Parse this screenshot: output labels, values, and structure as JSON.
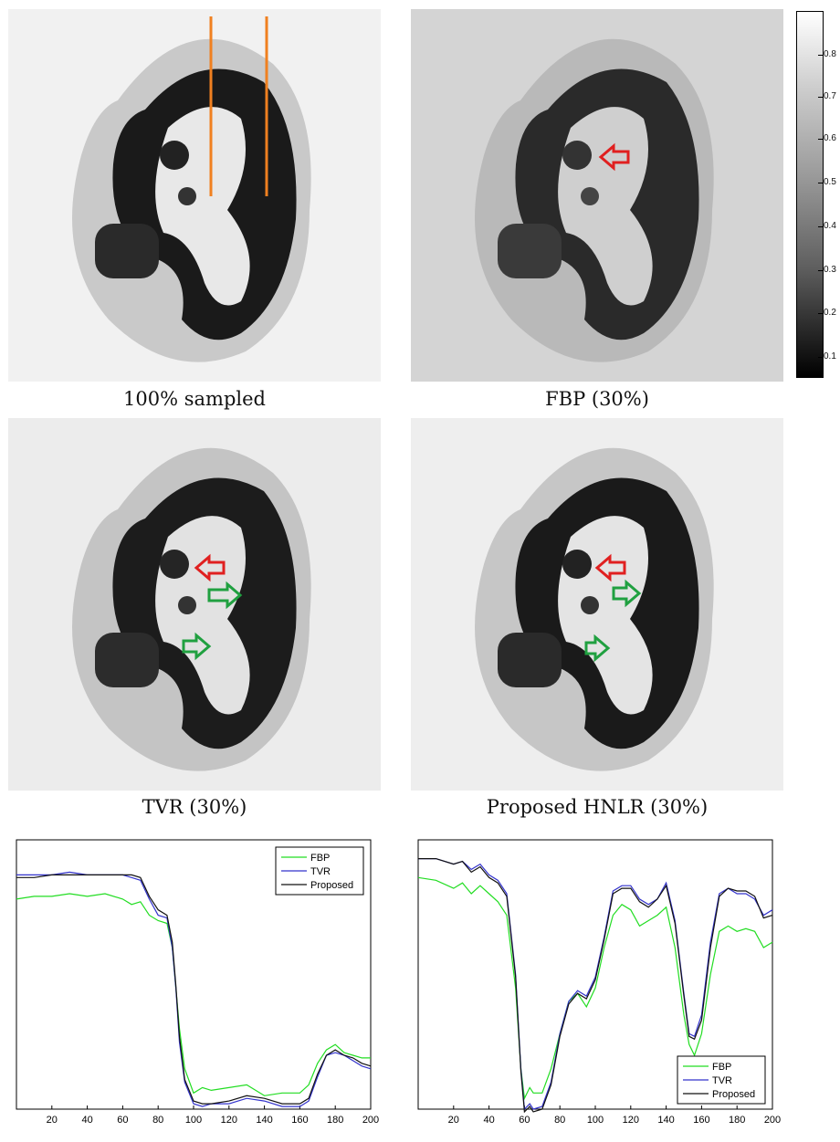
{
  "captions": {
    "full": "100% sampled",
    "fbp": "FBP (30%)",
    "tvr": "TVR (30%)",
    "proposed": "Proposed HNLR (30%)"
  },
  "colors": {
    "profile_line": "#f08020",
    "red_arrow": "#e02020",
    "green_arrow": "#20a040",
    "fbp": "#22dd22",
    "tvr": "#3333cc",
    "proposed": "#111111"
  },
  "colorbar": {
    "ticks": [
      "0.8",
      "0.7",
      "0.6",
      "0.5",
      "0.4",
      "0.3",
      "0.2",
      "0.1"
    ]
  },
  "chart_data": [
    {
      "type": "line",
      "legend_position": "top-right",
      "xlim": [
        0,
        200
      ],
      "ylim": [
        0,
        1
      ],
      "xticks": [
        20,
        40,
        60,
        80,
        100,
        120,
        140,
        160,
        180,
        200
      ],
      "x": [
        0,
        10,
        20,
        30,
        40,
        50,
        60,
        65,
        70,
        75,
        80,
        85,
        88,
        90,
        92,
        95,
        100,
        105,
        110,
        120,
        130,
        140,
        150,
        160,
        165,
        170,
        175,
        180,
        185,
        190,
        195,
        200
      ],
      "series": [
        {
          "name": "FBP",
          "values": [
            0.78,
            0.79,
            0.79,
            0.8,
            0.79,
            0.8,
            0.78,
            0.76,
            0.77,
            0.72,
            0.7,
            0.69,
            0.6,
            0.45,
            0.3,
            0.15,
            0.06,
            0.08,
            0.07,
            0.08,
            0.09,
            0.05,
            0.06,
            0.06,
            0.09,
            0.17,
            0.22,
            0.24,
            0.21,
            0.2,
            0.19,
            0.19
          ]
        },
        {
          "name": "TVR",
          "values": [
            0.87,
            0.87,
            0.87,
            0.88,
            0.87,
            0.87,
            0.87,
            0.86,
            0.85,
            0.78,
            0.72,
            0.71,
            0.6,
            0.45,
            0.25,
            0.1,
            0.02,
            0.01,
            0.02,
            0.02,
            0.04,
            0.03,
            0.01,
            0.01,
            0.03,
            0.12,
            0.2,
            0.21,
            0.2,
            0.18,
            0.16,
            0.15
          ]
        },
        {
          "name": "Proposed",
          "values": [
            0.86,
            0.86,
            0.87,
            0.87,
            0.87,
            0.87,
            0.87,
            0.87,
            0.86,
            0.79,
            0.74,
            0.72,
            0.62,
            0.46,
            0.27,
            0.11,
            0.03,
            0.02,
            0.02,
            0.03,
            0.05,
            0.04,
            0.02,
            0.02,
            0.04,
            0.13,
            0.2,
            0.22,
            0.2,
            0.19,
            0.17,
            0.16
          ]
        }
      ]
    },
    {
      "type": "line",
      "legend_position": "bottom-right",
      "xlim": [
        0,
        200
      ],
      "ylim": [
        0,
        1
      ],
      "xticks": [
        20,
        40,
        60,
        80,
        100,
        120,
        140,
        160,
        180,
        200
      ],
      "x": [
        0,
        10,
        20,
        25,
        30,
        35,
        40,
        45,
        50,
        55,
        58,
        60,
        63,
        65,
        70,
        75,
        80,
        85,
        90,
        95,
        100,
        105,
        110,
        115,
        120,
        125,
        130,
        135,
        140,
        145,
        150,
        153,
        156,
        160,
        165,
        170,
        175,
        180,
        185,
        190,
        195,
        200
      ],
      "series": [
        {
          "name": "FBP",
          "values": [
            0.86,
            0.85,
            0.82,
            0.84,
            0.8,
            0.83,
            0.8,
            0.77,
            0.72,
            0.45,
            0.15,
            0.04,
            0.08,
            0.06,
            0.06,
            0.15,
            0.28,
            0.4,
            0.43,
            0.38,
            0.45,
            0.6,
            0.72,
            0.76,
            0.74,
            0.68,
            0.7,
            0.72,
            0.75,
            0.6,
            0.35,
            0.24,
            0.2,
            0.28,
            0.5,
            0.66,
            0.68,
            0.66,
            0.67,
            0.66,
            0.6,
            0.62
          ]
        },
        {
          "name": "TVR",
          "values": [
            0.93,
            0.93,
            0.91,
            0.92,
            0.89,
            0.91,
            0.87,
            0.85,
            0.8,
            0.5,
            0.15,
            0.0,
            0.02,
            0.0,
            0.01,
            0.1,
            0.28,
            0.4,
            0.44,
            0.42,
            0.49,
            0.64,
            0.81,
            0.83,
            0.83,
            0.78,
            0.76,
            0.78,
            0.84,
            0.7,
            0.43,
            0.28,
            0.27,
            0.35,
            0.62,
            0.8,
            0.82,
            0.8,
            0.8,
            0.78,
            0.72,
            0.74
          ]
        },
        {
          "name": "Proposed",
          "values": [
            0.93,
            0.93,
            0.91,
            0.92,
            0.88,
            0.9,
            0.86,
            0.84,
            0.79,
            0.49,
            0.14,
            -0.01,
            0.01,
            -0.01,
            0.0,
            0.09,
            0.27,
            0.39,
            0.43,
            0.41,
            0.48,
            0.63,
            0.8,
            0.82,
            0.82,
            0.77,
            0.75,
            0.78,
            0.83,
            0.69,
            0.42,
            0.27,
            0.26,
            0.33,
            0.6,
            0.79,
            0.82,
            0.81,
            0.81,
            0.79,
            0.71,
            0.72
          ]
        }
      ]
    }
  ]
}
